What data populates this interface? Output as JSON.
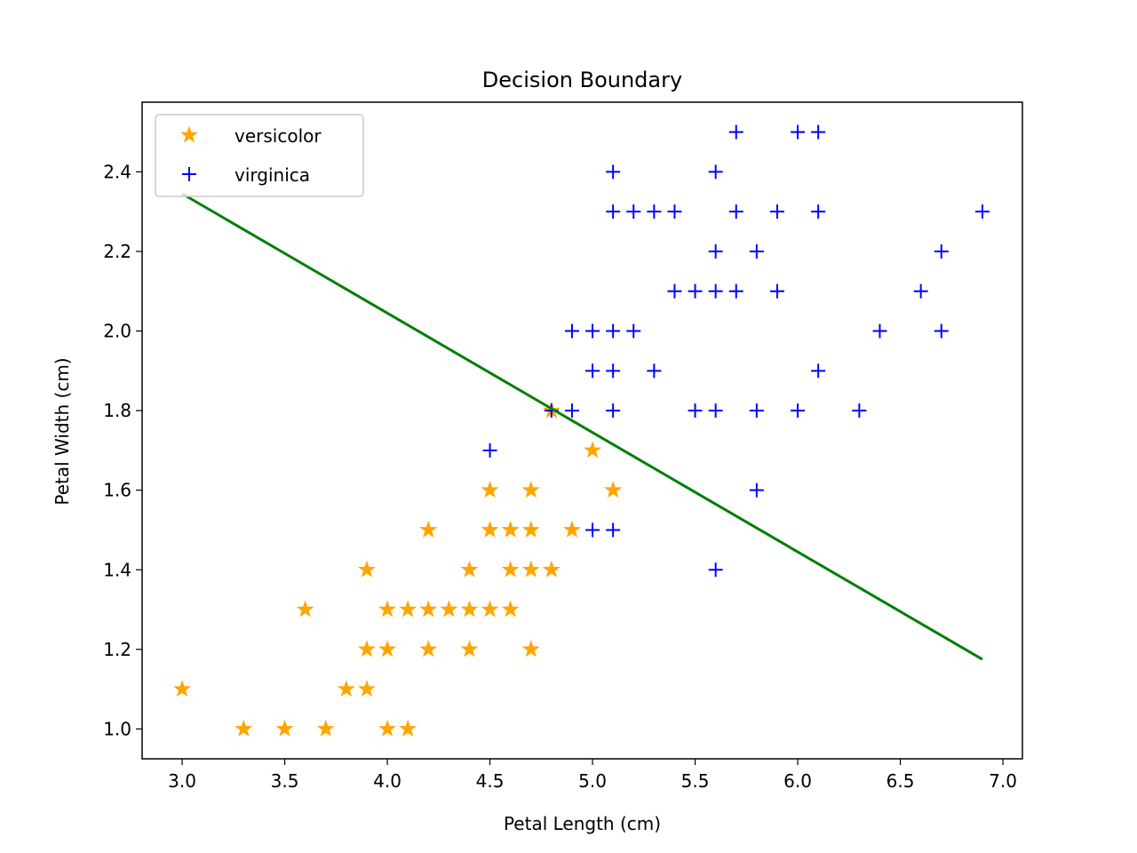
{
  "chart_data": {
    "type": "scatter",
    "title": "Decision Boundary",
    "xlabel": "Petal Length (cm)",
    "ylabel": "Petal Width (cm)",
    "xlim": [
      2.805,
      7.095
    ],
    "ylim": [
      0.925,
      2.575
    ],
    "xticks": [
      3.0,
      3.5,
      4.0,
      4.5,
      5.0,
      5.5,
      6.0,
      6.5,
      7.0
    ],
    "xtick_labels": [
      "3.0",
      "3.5",
      "4.0",
      "4.5",
      "5.0",
      "5.5",
      "6.0",
      "6.5",
      "7.0"
    ],
    "yticks": [
      1.0,
      1.2,
      1.4,
      1.6,
      1.8,
      2.0,
      2.2,
      2.4
    ],
    "ytick_labels": [
      "1.0",
      "1.2",
      "1.4",
      "1.6",
      "1.8",
      "2.0",
      "2.2",
      "2.4"
    ],
    "grid": false,
    "legend_position": "top-left",
    "series": [
      {
        "name": "versicolor",
        "marker": "star",
        "color": "#ffa500",
        "points": [
          [
            3.0,
            1.1
          ],
          [
            3.3,
            1.0
          ],
          [
            3.5,
            1.0
          ],
          [
            3.7,
            1.0
          ],
          [
            3.6,
            1.3
          ],
          [
            3.8,
            1.1
          ],
          [
            3.9,
            1.1
          ],
          [
            3.9,
            1.2
          ],
          [
            3.9,
            1.4
          ],
          [
            4.0,
            1.0
          ],
          [
            4.0,
            1.2
          ],
          [
            4.0,
            1.3
          ],
          [
            4.1,
            1.0
          ],
          [
            4.1,
            1.3
          ],
          [
            4.2,
            1.2
          ],
          [
            4.2,
            1.3
          ],
          [
            4.2,
            1.5
          ],
          [
            4.3,
            1.3
          ],
          [
            4.4,
            1.2
          ],
          [
            4.4,
            1.3
          ],
          [
            4.4,
            1.4
          ],
          [
            4.5,
            1.3
          ],
          [
            4.5,
            1.5
          ],
          [
            4.5,
            1.6
          ],
          [
            4.6,
            1.3
          ],
          [
            4.6,
            1.4
          ],
          [
            4.6,
            1.5
          ],
          [
            4.7,
            1.2
          ],
          [
            4.7,
            1.4
          ],
          [
            4.7,
            1.5
          ],
          [
            4.7,
            1.6
          ],
          [
            4.8,
            1.4
          ],
          [
            4.8,
            1.8
          ],
          [
            4.9,
            1.5
          ],
          [
            5.0,
            1.7
          ],
          [
            5.1,
            1.6
          ]
        ]
      },
      {
        "name": "virginica",
        "marker": "plus",
        "color": "#0000ff",
        "points": [
          [
            4.5,
            1.7
          ],
          [
            4.8,
            1.8
          ],
          [
            4.9,
            1.8
          ],
          [
            4.9,
            2.0
          ],
          [
            5.0,
            1.5
          ],
          [
            5.0,
            1.9
          ],
          [
            5.0,
            2.0
          ],
          [
            5.1,
            1.5
          ],
          [
            5.1,
            1.8
          ],
          [
            5.1,
            1.9
          ],
          [
            5.1,
            2.0
          ],
          [
            5.1,
            2.3
          ],
          [
            5.1,
            2.4
          ],
          [
            5.2,
            2.0
          ],
          [
            5.2,
            2.3
          ],
          [
            5.3,
            1.9
          ],
          [
            5.3,
            2.3
          ],
          [
            5.4,
            2.1
          ],
          [
            5.4,
            2.3
          ],
          [
            5.5,
            1.8
          ],
          [
            5.5,
            2.1
          ],
          [
            5.6,
            1.4
          ],
          [
            5.6,
            1.8
          ],
          [
            5.6,
            2.1
          ],
          [
            5.6,
            2.2
          ],
          [
            5.6,
            2.4
          ],
          [
            5.7,
            2.1
          ],
          [
            5.7,
            2.3
          ],
          [
            5.7,
            2.5
          ],
          [
            5.8,
            1.6
          ],
          [
            5.8,
            1.8
          ],
          [
            5.8,
            2.2
          ],
          [
            5.9,
            2.1
          ],
          [
            5.9,
            2.3
          ],
          [
            6.0,
            1.8
          ],
          [
            6.0,
            2.5
          ],
          [
            6.1,
            1.9
          ],
          [
            6.1,
            2.3
          ],
          [
            6.1,
            2.5
          ],
          [
            6.3,
            1.8
          ],
          [
            6.4,
            2.0
          ],
          [
            6.6,
            2.1
          ],
          [
            6.7,
            2.0
          ],
          [
            6.7,
            2.2
          ],
          [
            6.9,
            2.3
          ]
        ]
      }
    ],
    "boundary_line": {
      "color": "#007f00",
      "points": [
        [
          3.0,
          2.345
        ],
        [
          6.9,
          1.175
        ]
      ]
    }
  }
}
